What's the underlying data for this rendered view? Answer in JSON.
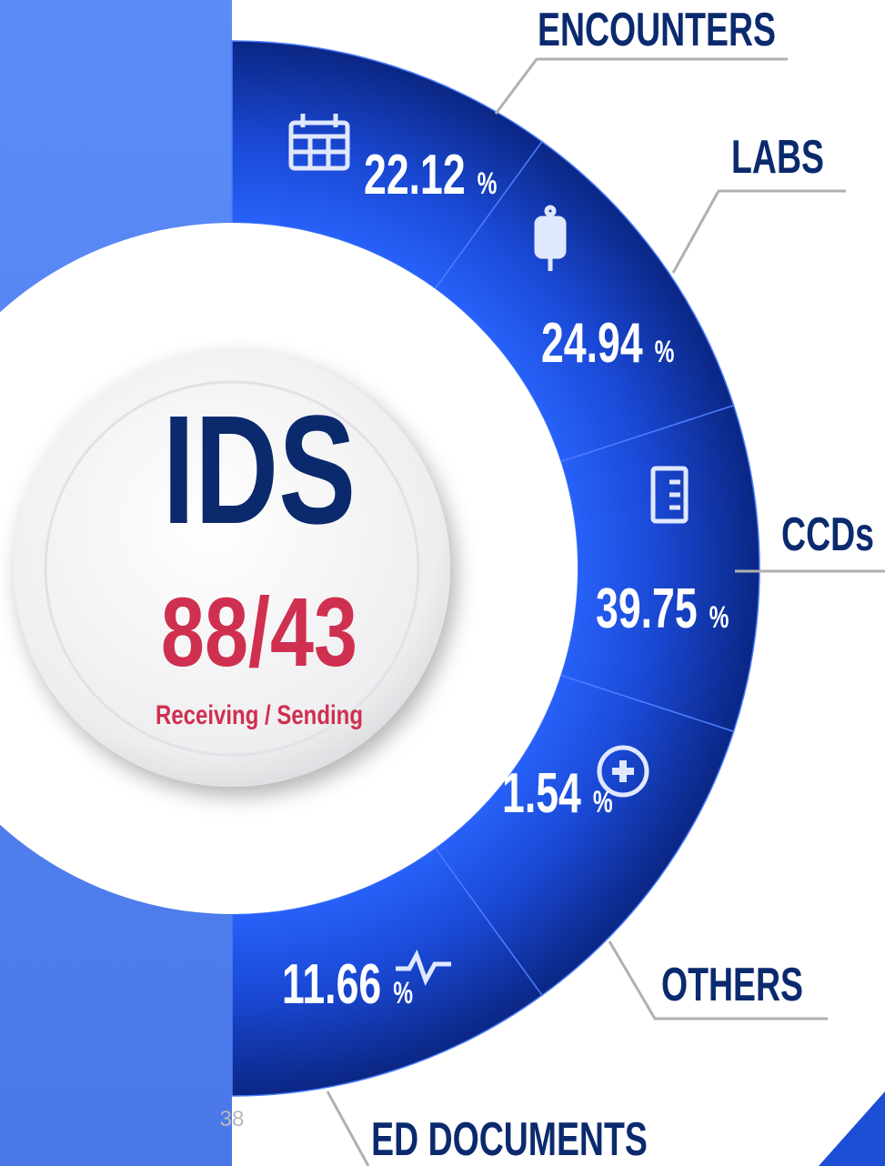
{
  "center": {
    "title": "IDS",
    "ratio": "88/43",
    "caption": "Receiving / Sending"
  },
  "segments": [
    {
      "label": "ENCOUNTERS",
      "value": "22.12",
      "unit": "%"
    },
    {
      "label": "LABS",
      "value": "24.94",
      "unit": "%"
    },
    {
      "label": "CCDs",
      "value": "39.75",
      "unit": "%"
    },
    {
      "label": "OTHERS",
      "value": "1.54",
      "unit": "%"
    },
    {
      "label": "ED DOCUMENTS",
      "value": "11.66",
      "unit": "%"
    }
  ],
  "page_number": "38"
}
